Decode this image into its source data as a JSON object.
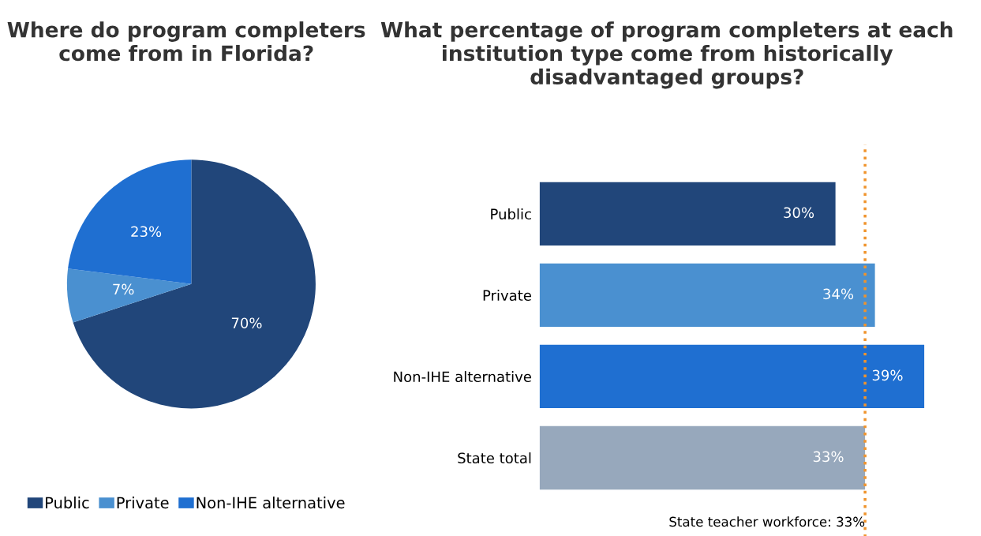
{
  "chart_data": [
    {
      "type": "pie",
      "title": "Where do program completers come from in Florida?",
      "categories": [
        "Public",
        "Private",
        "Non-IHE alternative"
      ],
      "values": [
        70,
        7,
        23
      ],
      "colors": [
        "#21467a",
        "#4a90d0",
        "#1f6fd1"
      ],
      "value_labels": [
        "70%",
        "7%",
        "23%"
      ],
      "legend": "bottom"
    },
    {
      "type": "bar",
      "orientation": "horizontal",
      "title": "What percentage of program completers at each institution type come from historically disadvantaged groups?",
      "categories": [
        "Public",
        "Private",
        "Non-IHE alternative",
        "State total"
      ],
      "values": [
        30,
        34,
        39,
        33
      ],
      "colors": [
        "#21467a",
        "#4a90d0",
        "#1f6fd1",
        "#97a8bc"
      ],
      "value_labels": [
        "30%",
        "34%",
        "39%",
        "33%"
      ],
      "tick_labels": "y",
      "ref_lines": [
        {
          "axis": "x",
          "value": 33,
          "label": "State teacher workforce: 33%",
          "color": "#f0932b",
          "line_style": "dotted"
        }
      ]
    }
  ]
}
